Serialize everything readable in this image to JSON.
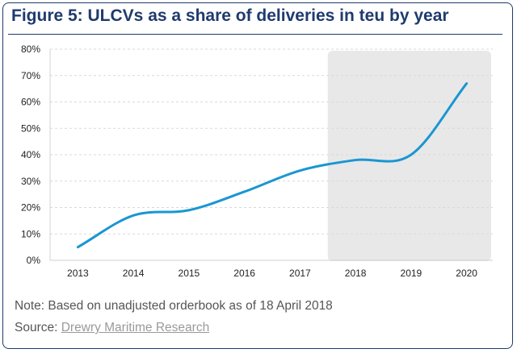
{
  "title": "Figure 5: ULCVs as a share of deliveries in teu by year",
  "note": "Note: Based on unadjusted orderbook as of 18 April 2018",
  "source": {
    "prefix": "Source:",
    "name": "Drewry Maritime Research"
  },
  "colors": {
    "line": "#1a96d2",
    "shade": "#e8e8e8",
    "title": "#1f3a6e",
    "grid": "#d9d9d9"
  },
  "chart_data": {
    "type": "line",
    "title": "",
    "xlabel": "",
    "ylabel": "",
    "categories": [
      "2013",
      "2014",
      "2015",
      "2016",
      "2017",
      "2018",
      "2019",
      "2020"
    ],
    "y_ticks": [
      "0%",
      "10%",
      "20%",
      "30%",
      "40%",
      "50%",
      "60%",
      "70%",
      "80%"
    ],
    "ylim": [
      0,
      80
    ],
    "series": [
      {
        "values": [
          5,
          17,
          19,
          26,
          34,
          38,
          40,
          67
        ]
      }
    ],
    "shaded_categories": [
      "2018",
      "2019",
      "2020"
    ],
    "grid": "horizontal dashed",
    "legend": "none"
  }
}
